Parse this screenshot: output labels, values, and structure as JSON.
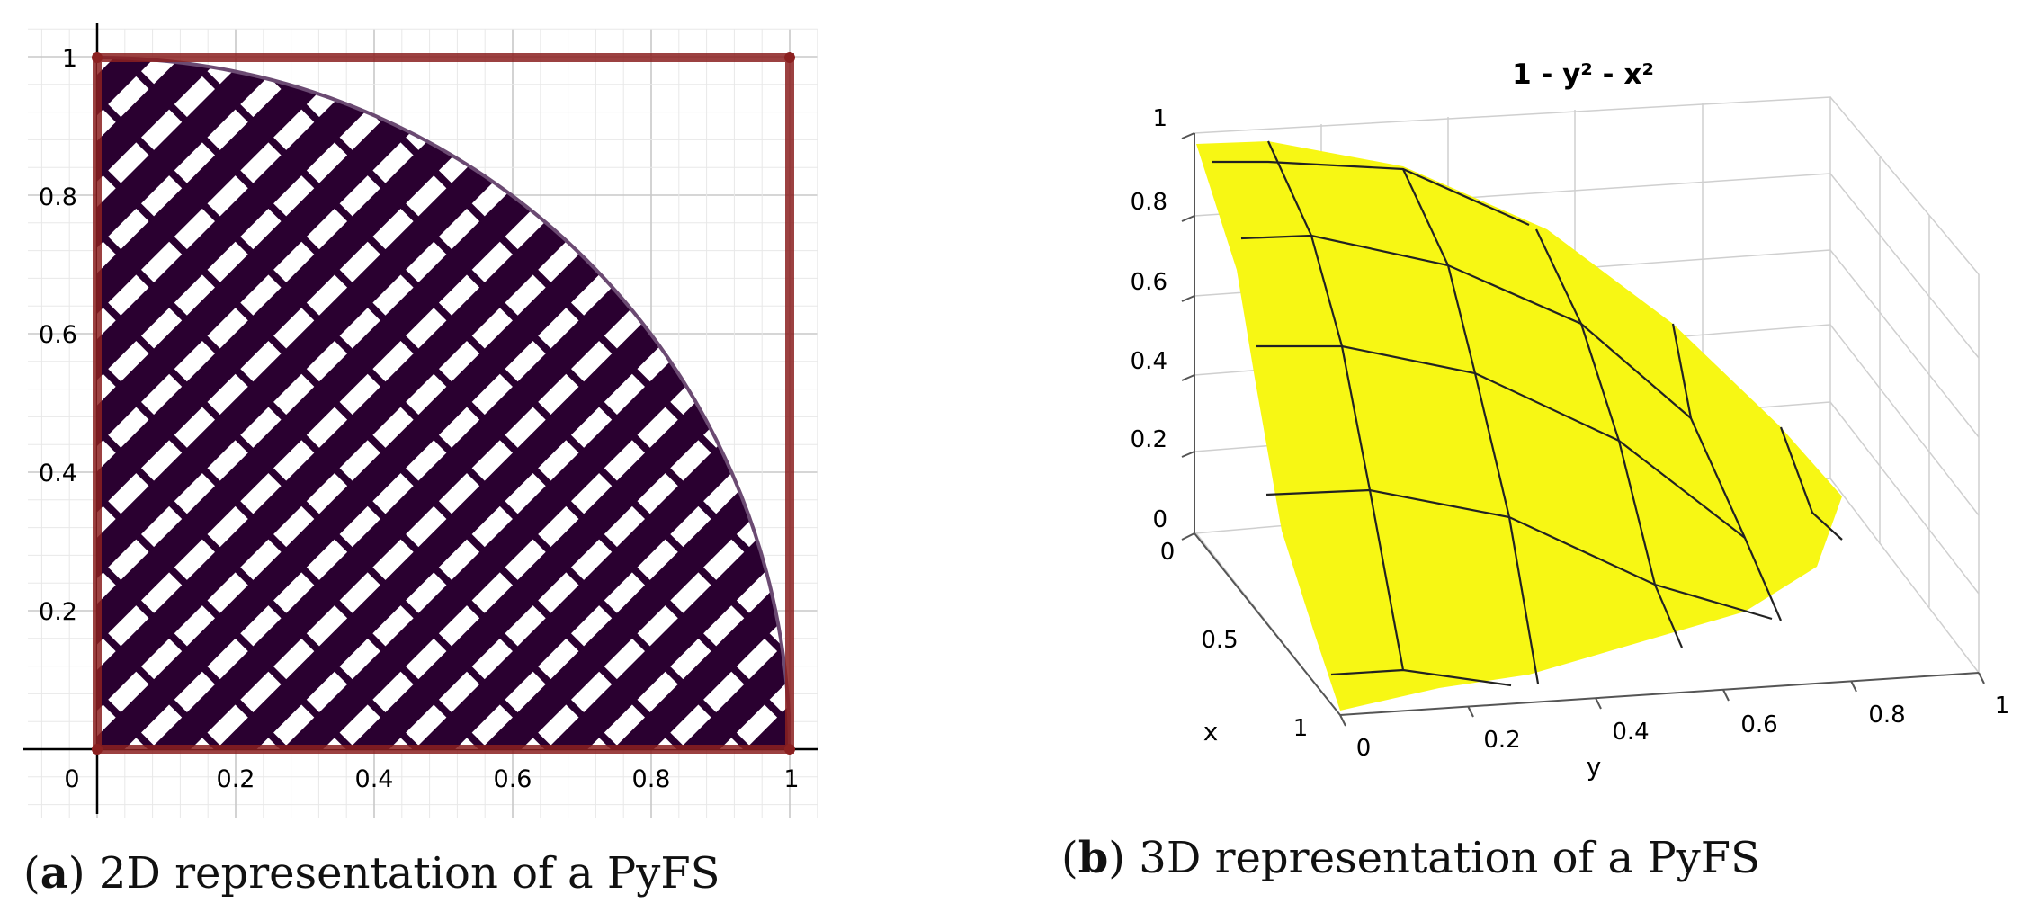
{
  "panel_a": {
    "axis": {
      "origin_label": "0",
      "x_ticks": [
        "0.2",
        "0.4",
        "0.6",
        "0.8",
        "1"
      ],
      "y_ticks": [
        "0.2",
        "0.4",
        "0.6",
        "0.8",
        "1"
      ]
    },
    "caption": {
      "letter": "a",
      "text": "2D representation of a PyFS"
    }
  },
  "panel_b": {
    "title": "1 - y² - x²",
    "z_ticks": [
      "0",
      "0.2",
      "0.4",
      "0.6",
      "0.8",
      "1"
    ],
    "x_ticks": [
      "0",
      "0.5",
      "1"
    ],
    "y_ticks": [
      "0",
      "0.2",
      "0.4",
      "0.6",
      "0.8",
      "1"
    ],
    "x_label": "x",
    "y_label": "y",
    "surface_color": "#f7f714",
    "caption": {
      "letter": "b",
      "text": "3D representation of a PyFS"
    }
  },
  "colors": {
    "region_fill": "#2a0030",
    "square_outline": "#8b2020",
    "arc": "#6b4a72"
  },
  "chart_data": [
    {
      "type": "area",
      "region": "unit quarter disc x^2 + y^2 <= 1 inside unit square",
      "xlim": [
        0,
        1
      ],
      "ylim": [
        0,
        1
      ],
      "x_ticks": [
        0,
        0.2,
        0.4,
        0.6,
        0.8,
        1
      ],
      "y_ticks": [
        0,
        0.2,
        0.4,
        0.6,
        0.8,
        1
      ],
      "grid": true
    },
    {
      "type": "surface",
      "title": "1 - y² - x²",
      "xlabel": "x",
      "ylabel": "y",
      "xlim": [
        0,
        1
      ],
      "ylim": [
        0,
        1
      ],
      "zlim": [
        0,
        1
      ]
    }
  ]
}
